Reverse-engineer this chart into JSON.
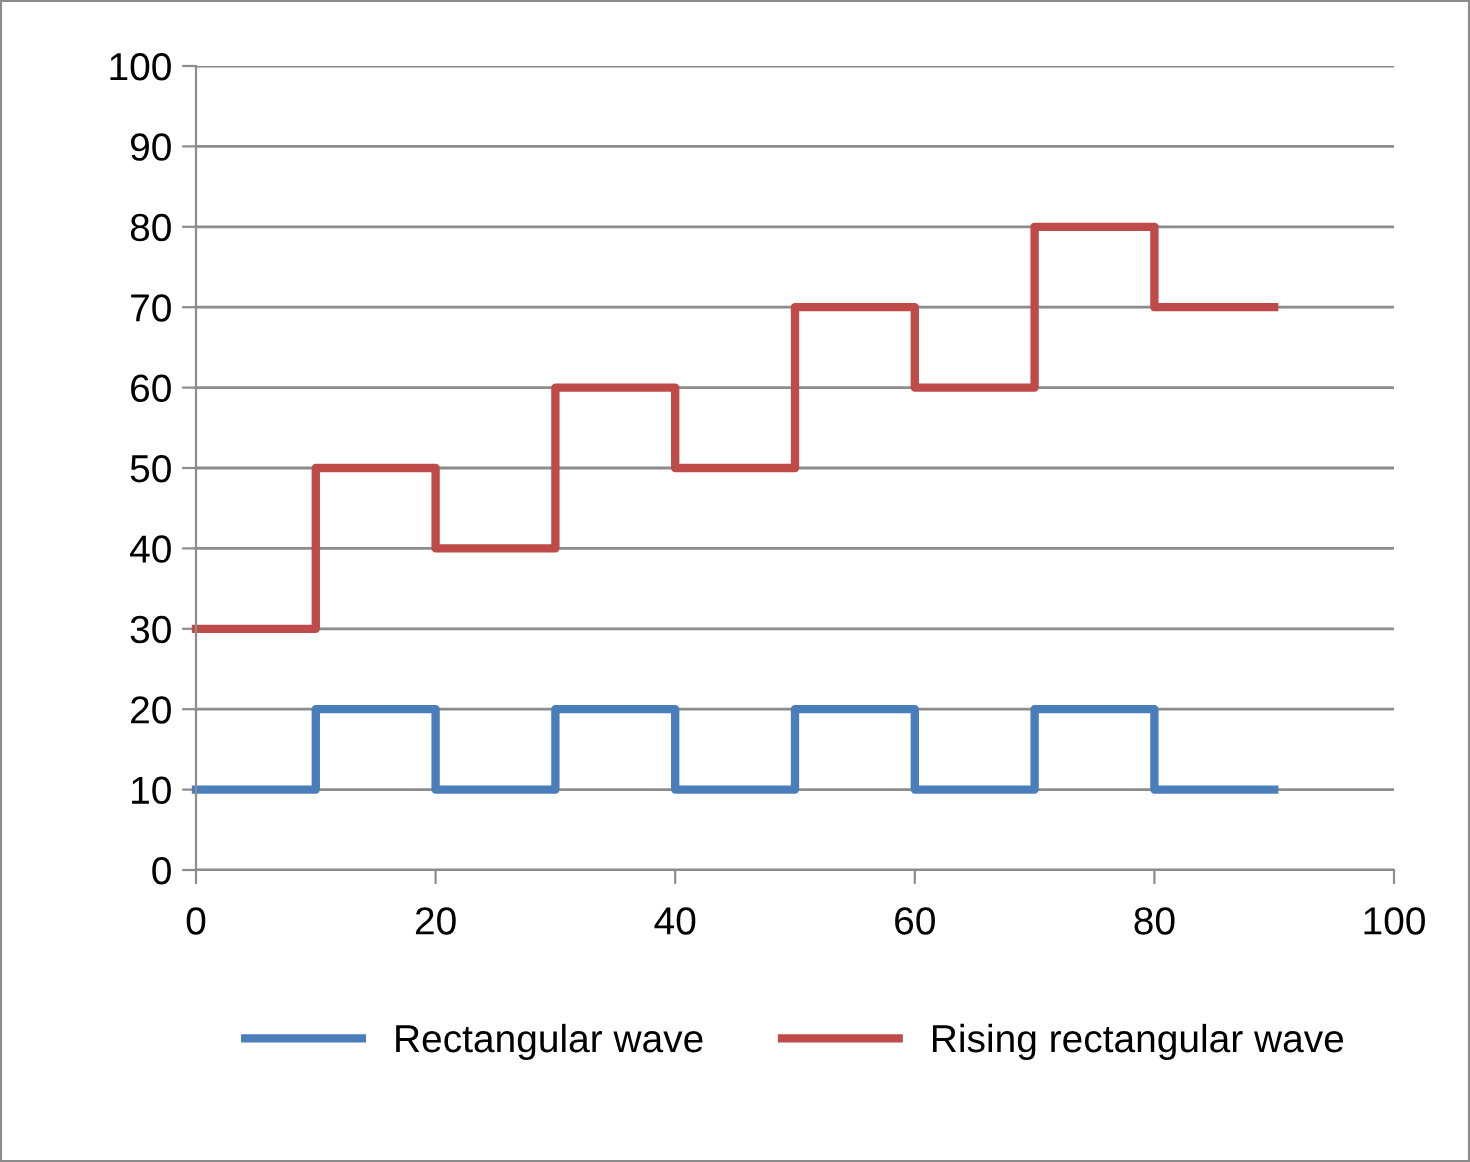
{
  "chart_data": {
    "type": "step",
    "x": [
      0,
      10,
      20,
      30,
      40,
      50,
      60,
      70,
      80,
      90
    ],
    "series": [
      {
        "name": "Rectangular wave",
        "color": "#4a7ebb",
        "values": [
          10,
          20,
          10,
          20,
          10,
          20,
          10,
          20,
          10,
          10
        ]
      },
      {
        "name": "Rising rectangular wave",
        "color": "#be4b48",
        "values": [
          30,
          50,
          40,
          60,
          50,
          70,
          60,
          80,
          70,
          70
        ]
      }
    ],
    "xlim": [
      0,
      100
    ],
    "xticks": [
      0,
      20,
      40,
      60,
      80,
      100
    ],
    "ylim": [
      0,
      100
    ],
    "yticks": [
      0,
      10,
      20,
      30,
      40,
      50,
      60,
      70,
      80,
      90,
      100
    ],
    "grid": "y",
    "legend": "bottom",
    "marker": "none",
    "line_style": "solid"
  }
}
